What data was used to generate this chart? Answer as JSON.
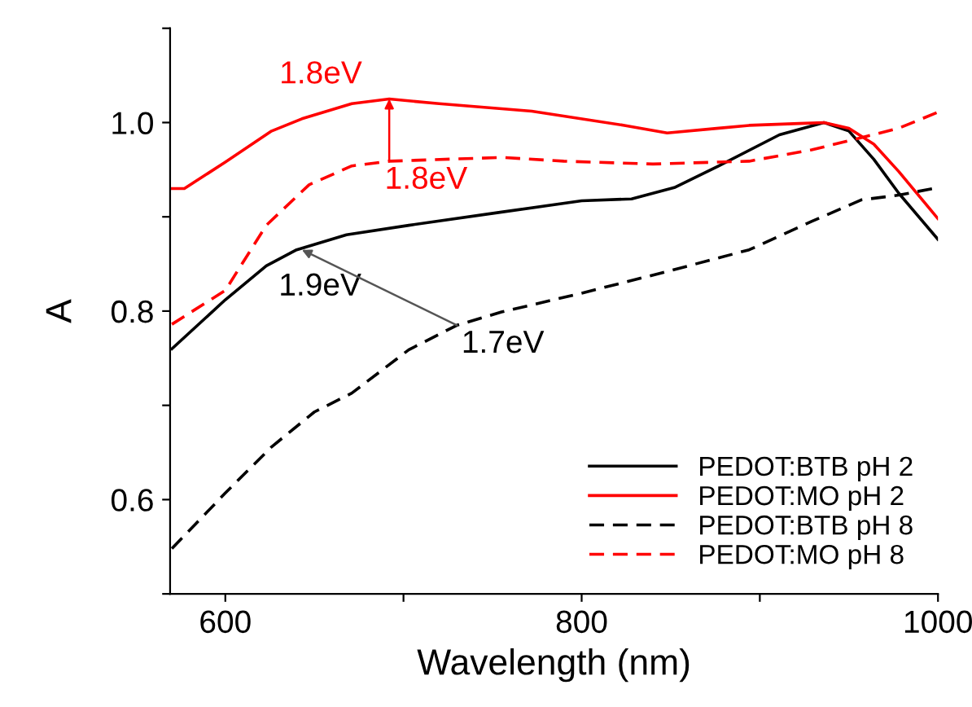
{
  "chart_data": {
    "type": "line",
    "xlabel": "Wavelength (nm)",
    "ylabel": "A",
    "xlim": [
      569,
      1000
    ],
    "ylim": [
      0.5,
      1.1
    ],
    "xticks": [
      600,
      {
        "value": 700,
        "label": null
      },
      800,
      {
        "value": 900,
        "label": null
      },
      1000
    ],
    "yticks": [
      {
        "value": 0.5,
        "label": null
      },
      0.6,
      {
        "value": 0.7,
        "label": null
      },
      0.8,
      {
        "value": 0.9,
        "label": null
      },
      {
        "value": 1.0,
        "label": "1.0"
      },
      {
        "value": 1.1,
        "label": null
      }
    ],
    "grid": false,
    "legend": "bottom right",
    "marker": "none",
    "series": [
      {
        "name": "PEDOT:BTB pH 2",
        "color": "#000000",
        "line_style": "solid",
        "x": [
          570,
          600,
          623,
          640,
          668,
          703,
          755,
          800,
          828,
          852,
          877,
          911,
          936,
          950,
          964,
          978,
          1000
        ],
        "values": [
          0.76,
          0.812,
          0.848,
          0.865,
          0.881,
          0.891,
          0.905,
          0.917,
          0.919,
          0.931,
          0.954,
          0.987,
          1.0,
          0.991,
          0.961,
          0.925,
          0.876
        ]
      },
      {
        "name": "PEDOT:MO pH 2",
        "color": "#ff0000",
        "line_style": "solid",
        "x": [
          570,
          577,
          600,
          626,
          643,
          671,
          692,
          720,
          772,
          824,
          848,
          877,
          894,
          922,
          936,
          950,
          964,
          978,
          1000
        ],
        "values": [
          0.93,
          0.93,
          0.958,
          0.991,
          1.004,
          1.02,
          1.025,
          1.02,
          1.012,
          0.997,
          0.989,
          0.994,
          0.997,
          0.999,
          1.0,
          0.994,
          0.977,
          0.948,
          0.898
        ]
      },
      {
        "name": "PEDOT:BTB pH 8",
        "color": "#000000",
        "line_style": "dashed",
        "x": [
          570,
          600,
          626,
          650,
          671,
          703,
          730,
          755,
          800,
          848,
          894,
          929,
          957,
          978,
          1000
        ],
        "values": [
          0.548,
          0.607,
          0.656,
          0.693,
          0.713,
          0.759,
          0.785,
          0.799,
          0.819,
          0.842,
          0.865,
          0.895,
          0.918,
          0.923,
          0.931
        ]
      },
      {
        "name": "PEDOT:MO pH 8",
        "color": "#ff0000",
        "line_style": "dashed",
        "x": [
          570,
          600,
          623,
          647,
          671,
          692,
          755,
          790,
          840,
          894,
          929,
          957,
          978,
          1000
        ],
        "values": [
          0.786,
          0.822,
          0.891,
          0.934,
          0.954,
          0.959,
          0.963,
          0.959,
          0.956,
          0.959,
          0.971,
          0.984,
          0.994,
          1.011
        ]
      }
    ],
    "annotations": [
      {
        "text": "1.8eV",
        "x": 692,
        "y": 1.025
      },
      {
        "text": "1.8eV",
        "x": 692,
        "y": 0.959
      },
      {
        "text": "1.9eV",
        "x": 643,
        "y": 0.865
      },
      {
        "text": "1.7eV",
        "x": 730,
        "y": 0.785
      }
    ]
  }
}
